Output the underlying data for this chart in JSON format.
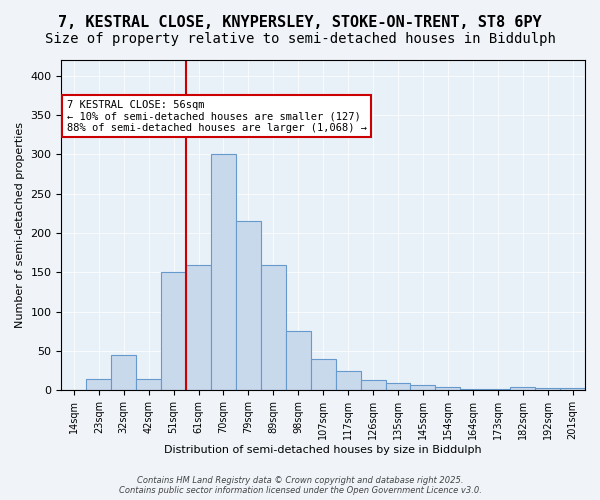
{
  "title1": "7, KESTRAL CLOSE, KNYPERSLEY, STOKE-ON-TRENT, ST8 6PY",
  "title2": "Size of property relative to semi-detached houses in Biddulph",
  "xlabel": "Distribution of semi-detached houses by size in Biddulph",
  "ylabel": "Number of semi-detached properties",
  "categories": [
    "14sqm",
    "23sqm",
    "32sqm",
    "42sqm",
    "51sqm",
    "61sqm",
    "70sqm",
    "79sqm",
    "89sqm",
    "98sqm",
    "107sqm",
    "117sqm",
    "126sqm",
    "135sqm",
    "145sqm",
    "154sqm",
    "164sqm",
    "173sqm",
    "182sqm",
    "192sqm",
    "201sqm"
  ],
  "values": [
    0,
    15,
    45,
    15,
    150,
    160,
    300,
    215,
    160,
    75,
    40,
    25,
    13,
    10,
    7,
    4,
    2,
    2,
    5,
    3,
    3
  ],
  "bar_color": "#c9d9ec",
  "bar_edge_color": "#6699cc",
  "vline_x": 4.5,
  "vline_color": "#cc0000",
  "annotation_text": "7 KESTRAL CLOSE: 56sqm\n← 10% of semi-detached houses are smaller (127)\n88% of semi-detached houses are larger (1,068) →",
  "annotation_box_color": "#ffffff",
  "annotation_box_edge": "#cc0000",
  "background_color": "#e8f0f8",
  "ylim": [
    0,
    420
  ],
  "title_fontsize": 11,
  "subtitle_fontsize": 10,
  "footer_text": "Contains HM Land Registry data © Crown copyright and database right 2025.\nContains public sector information licensed under the Open Government Licence v3.0."
}
